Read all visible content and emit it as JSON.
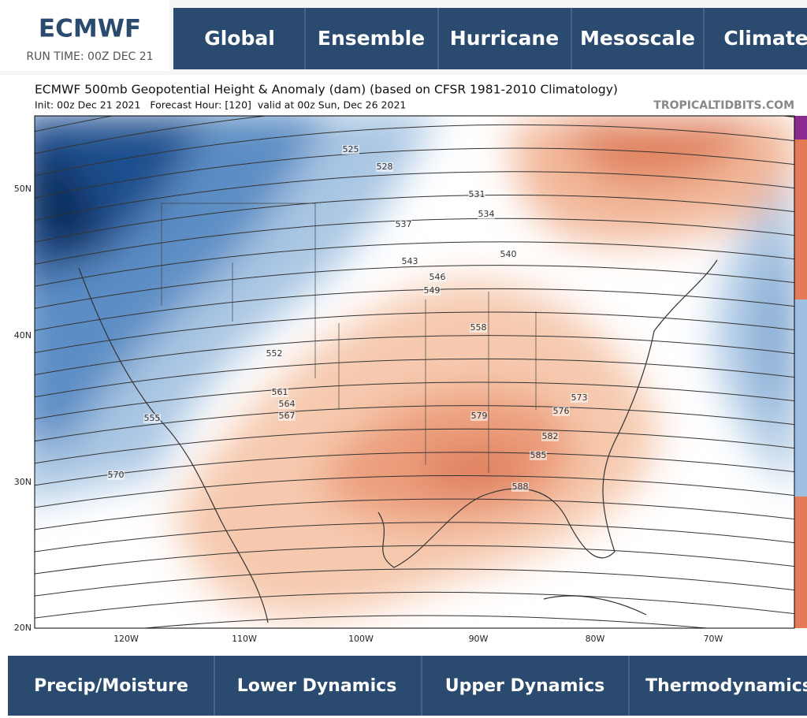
{
  "header": {
    "logo": "ECMWF",
    "run_time": "RUN TIME: 00Z DEC 21"
  },
  "nav": [
    "Global",
    "Ensemble",
    "Hurricane",
    "Mesoscale",
    "Climate"
  ],
  "map": {
    "title": "ECMWF 500mb Geopotential Height & Anomaly (dam) (based on CFSR 1981-2010 Climatology)",
    "subtitle": "Init: 00z Dec 21 2021   Forecast Hour: [120]  valid at 00z Sun, Dec 26 2021",
    "source": "TROPICALTIDBITS.COM",
    "lat_labels": [
      "50N",
      "40N",
      "30N",
      "20N"
    ],
    "lon_labels": [
      "120W",
      "110W",
      "100W",
      "90W",
      "80W",
      "70W"
    ],
    "contour_labels": [
      "525",
      "528",
      "531",
      "534",
      "537",
      "540",
      "543",
      "546",
      "549",
      "552",
      "555",
      "558",
      "561",
      "564",
      "567",
      "570",
      "573",
      "576",
      "579",
      "582",
      "585",
      "588"
    ]
  },
  "bottom_nav": [
    "Precip/Moisture",
    "Lower Dynamics",
    "Upper Dynamics",
    "Thermodynamics"
  ]
}
